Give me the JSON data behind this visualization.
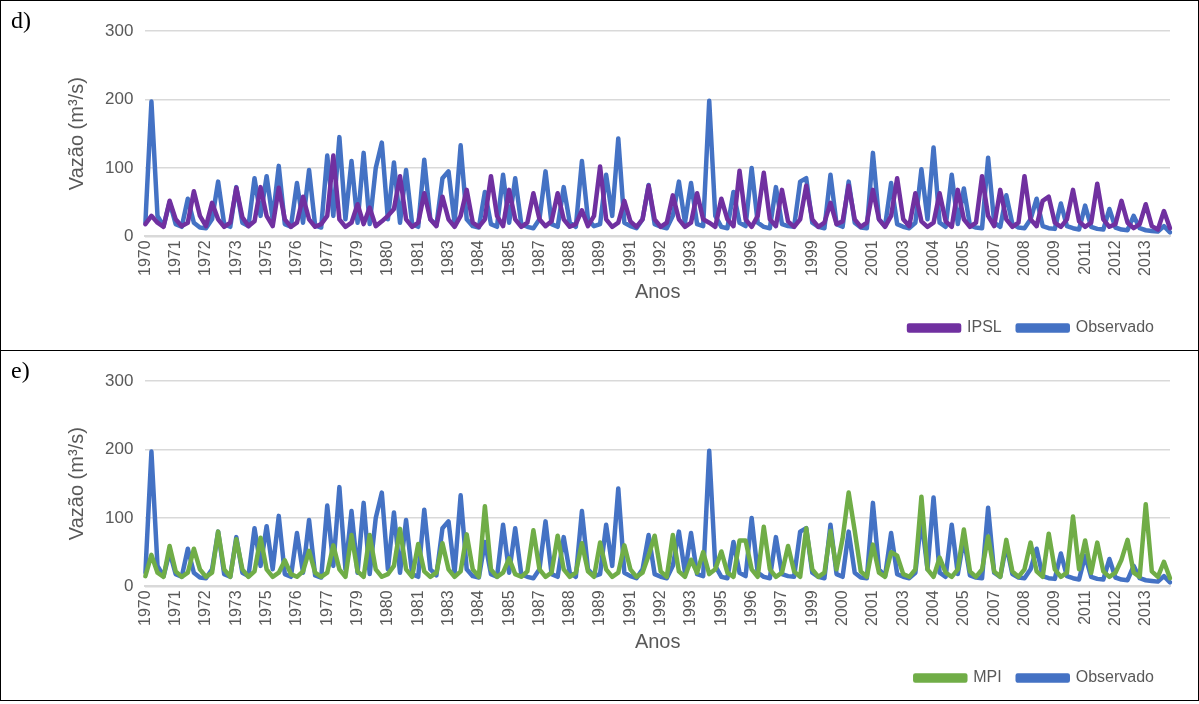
{
  "chart_data": [
    {
      "type": "line",
      "annotations": [
        "d)"
      ],
      "xlabel": "Anos",
      "ylabel": "Vazão (m³/s)",
      "ylim": [
        0,
        300
      ],
      "yticks": [
        0,
        100,
        200,
        300
      ],
      "grid": "y",
      "legend": "bottom right",
      "categories": [
        "1970",
        null,
        null,
        null,
        null,
        "1971",
        null,
        null,
        null,
        null,
        "1972",
        null,
        null,
        null,
        null,
        "1973",
        null,
        null,
        null,
        null,
        "1975",
        null,
        null,
        null,
        null,
        "1976",
        null,
        null,
        null,
        null,
        "1977",
        null,
        null,
        null,
        null,
        "1979",
        null,
        null,
        null,
        null,
        "1980",
        null,
        null,
        null,
        null,
        "1981",
        null,
        null,
        null,
        null,
        "1983",
        null,
        null,
        null,
        null,
        "1984",
        null,
        null,
        null,
        null,
        "1985",
        null,
        null,
        null,
        null,
        "1987",
        null,
        null,
        null,
        null,
        "1988",
        null,
        null,
        null,
        null,
        "1989",
        null,
        null,
        null,
        null,
        "1991",
        null,
        null,
        null,
        null,
        "1992",
        null,
        null,
        null,
        null,
        "1993",
        null,
        null,
        null,
        null,
        "1995",
        null,
        null,
        null,
        null,
        "1996",
        null,
        null,
        null,
        null,
        "1997",
        null,
        null,
        null,
        null,
        "1999",
        null,
        null,
        null,
        null,
        "2000",
        null,
        null,
        null,
        null,
        "2001",
        null,
        null,
        null,
        null,
        "2003",
        null,
        null,
        null,
        null,
        "2004",
        null,
        null,
        null,
        null,
        "2005",
        null,
        null,
        null,
        null,
        "2007",
        null,
        null,
        null,
        null,
        "2008",
        null,
        null,
        null,
        null,
        "2009",
        null,
        null,
        null,
        null,
        "2011",
        null,
        null,
        null,
        null,
        "2012",
        null,
        null,
        null,
        null,
        "2013",
        null,
        null,
        null,
        null
      ],
      "series": [
        {
          "name": "Observado",
          "color": "#4472c4",
          "values": [
            20,
            197,
            30,
            15,
            50,
            18,
            14,
            55,
            20,
            13,
            12,
            25,
            80,
            18,
            14,
            72,
            20,
            15,
            85,
            30,
            88,
            25,
            103,
            18,
            14,
            78,
            20,
            97,
            16,
            13,
            118,
            30,
            145,
            25,
            110,
            20,
            122,
            18,
            100,
            137,
            25,
            108,
            20,
            97,
            18,
            14,
            112,
            25,
            16,
            85,
            95,
            20,
            133,
            25,
            15,
            13,
            65,
            18,
            14,
            90,
            20,
            85,
            18,
            14,
            12,
            25,
            95,
            18,
            14,
            72,
            20,
            14,
            110,
            25,
            15,
            18,
            90,
            30,
            143,
            20,
            15,
            12,
            25,
            75,
            18,
            14,
            12,
            30,
            80,
            20,
            78,
            18,
            15,
            198,
            30,
            14,
            12,
            65,
            20,
            15,
            100,
            20,
            14,
            12,
            72,
            18,
            15,
            14,
            80,
            85,
            20,
            14,
            12,
            90,
            18,
            14,
            80,
            20,
            13,
            12,
            122,
            25,
            15,
            78,
            18,
            14,
            12,
            20,
            98,
            25,
            130,
            20,
            14,
            90,
            18,
            70,
            16,
            13,
            12,
            115,
            20,
            14,
            60,
            18,
            13,
            12,
            25,
            55,
            15,
            12,
            11,
            48,
            15,
            12,
            10,
            45,
            14,
            11,
            10,
            40,
            13,
            10,
            9,
            30,
            12,
            9,
            8,
            7,
            15,
            6
          ]
        },
        {
          "name": "IPSL",
          "color": "#7030a0",
          "values": [
            18,
            30,
            20,
            14,
            52,
            25,
            15,
            20,
            66,
            30,
            15,
            49,
            25,
            14,
            20,
            71,
            28,
            15,
            22,
            72,
            30,
            15,
            71,
            25,
            14,
            20,
            58,
            25,
            14,
            18,
            30,
            118,
            25,
            14,
            20,
            47,
            18,
            42,
            15,
            22,
            30,
            40,
            88,
            25,
            14,
            20,
            63,
            25,
            15,
            58,
            25,
            14,
            30,
            68,
            20,
            14,
            25,
            88,
            30,
            15,
            68,
            25,
            14,
            20,
            63,
            25,
            15,
            22,
            63,
            25,
            14,
            18,
            38,
            15,
            30,
            102,
            25,
            14,
            20,
            52,
            22,
            14,
            25,
            74,
            25,
            14,
            20,
            60,
            25,
            14,
            20,
            63,
            25,
            20,
            14,
            55,
            25,
            15,
            96,
            25,
            14,
            30,
            93,
            25,
            15,
            68,
            22,
            14,
            25,
            74,
            25,
            14,
            20,
            49,
            18,
            22,
            74,
            25,
            14,
            20,
            68,
            25,
            14,
            30,
            85,
            25,
            15,
            63,
            22,
            14,
            20,
            63,
            22,
            14,
            68,
            25,
            14,
            20,
            88,
            30,
            15,
            68,
            25,
            14,
            20,
            88,
            25,
            15,
            52,
            58,
            20,
            14,
            25,
            68,
            22,
            14,
            20,
            77,
            25,
            14,
            18,
            52,
            20,
            12,
            18,
            47,
            15,
            10,
            37,
            12
          ]
        }
      ]
    },
    {
      "type": "line",
      "annotations": [
        "e)"
      ],
      "xlabel": "Anos",
      "ylabel": "Vazão (m³/s)",
      "ylim": [
        0,
        300
      ],
      "yticks": [
        0,
        100,
        200,
        300
      ],
      "grid": "y",
      "legend": "bottom right",
      "categories": [
        "1970",
        null,
        null,
        null,
        null,
        "1971",
        null,
        null,
        null,
        null,
        "1972",
        null,
        null,
        null,
        null,
        "1973",
        null,
        null,
        null,
        null,
        "1975",
        null,
        null,
        null,
        null,
        "1976",
        null,
        null,
        null,
        null,
        "1977",
        null,
        null,
        null,
        null,
        "1979",
        null,
        null,
        null,
        null,
        "1980",
        null,
        null,
        null,
        null,
        "1981",
        null,
        null,
        null,
        null,
        "1983",
        null,
        null,
        null,
        null,
        "1984",
        null,
        null,
        null,
        null,
        "1985",
        null,
        null,
        null,
        null,
        "1987",
        null,
        null,
        null,
        null,
        "1988",
        null,
        null,
        null,
        null,
        "1989",
        null,
        null,
        null,
        null,
        "1991",
        null,
        null,
        null,
        null,
        "1992",
        null,
        null,
        null,
        null,
        "1993",
        null,
        null,
        null,
        null,
        "1995",
        null,
        null,
        null,
        null,
        "1996",
        null,
        null,
        null,
        null,
        "1997",
        null,
        null,
        null,
        null,
        "1999",
        null,
        null,
        null,
        null,
        "2000",
        null,
        null,
        null,
        null,
        "2001",
        null,
        null,
        null,
        null,
        "2003",
        null,
        null,
        null,
        null,
        "2004",
        null,
        null,
        null,
        null,
        "2005",
        null,
        null,
        null,
        null,
        "2007",
        null,
        null,
        null,
        null,
        "2008",
        null,
        null,
        null,
        null,
        "2009",
        null,
        null,
        null,
        null,
        "2011",
        null,
        null,
        null,
        null,
        "2012",
        null,
        null,
        null,
        null,
        "2013",
        null,
        null,
        null,
        null
      ],
      "series": [
        {
          "name": "Observado",
          "color": "#4472c4",
          "values": [
            20,
            197,
            30,
            15,
            50,
            18,
            14,
            55,
            20,
            13,
            12,
            25,
            80,
            18,
            14,
            72,
            20,
            15,
            85,
            30,
            88,
            25,
            103,
            18,
            14,
            78,
            20,
            97,
            16,
            13,
            118,
            30,
            145,
            25,
            110,
            20,
            122,
            18,
            100,
            137,
            25,
            108,
            20,
            97,
            18,
            14,
            112,
            25,
            16,
            85,
            95,
            20,
            133,
            25,
            15,
            13,
            65,
            18,
            14,
            90,
            20,
            85,
            18,
            14,
            12,
            25,
            95,
            18,
            14,
            72,
            20,
            14,
            110,
            25,
            15,
            18,
            90,
            30,
            143,
            20,
            15,
            12,
            25,
            75,
            18,
            14,
            12,
            30,
            80,
            20,
            78,
            18,
            15,
            198,
            30,
            14,
            12,
            65,
            20,
            15,
            100,
            20,
            14,
            12,
            72,
            18,
            15,
            14,
            80,
            85,
            20,
            14,
            12,
            90,
            18,
            14,
            80,
            20,
            13,
            12,
            122,
            25,
            15,
            78,
            18,
            14,
            12,
            20,
            98,
            25,
            130,
            20,
            14,
            90,
            18,
            70,
            16,
            13,
            12,
            115,
            20,
            14,
            60,
            18,
            13,
            12,
            25,
            55,
            15,
            12,
            11,
            48,
            15,
            12,
            10,
            45,
            14,
            11,
            10,
            40,
            13,
            10,
            9,
            30,
            12,
            9,
            8,
            7,
            15,
            6
          ]
        },
        {
          "name": "MPI",
          "color": "#70ad47",
          "values": [
            15,
            46,
            20,
            14,
            59,
            22,
            14,
            20,
            55,
            25,
            14,
            20,
            80,
            25,
            14,
            69,
            25,
            14,
            22,
            71,
            25,
            14,
            20,
            38,
            18,
            14,
            22,
            52,
            20,
            14,
            20,
            60,
            25,
            14,
            75,
            22,
            14,
            75,
            25,
            14,
            18,
            30,
            84,
            25,
            14,
            62,
            22,
            14,
            20,
            63,
            25,
            14,
            22,
            76,
            25,
            14,
            117,
            25,
            14,
            20,
            41,
            18,
            14,
            22,
            82,
            25,
            14,
            20,
            74,
            25,
            14,
            20,
            63,
            22,
            14,
            64,
            25,
            14,
            20,
            60,
            25,
            14,
            20,
            45,
            74,
            22,
            14,
            75,
            22,
            14,
            39,
            20,
            50,
            18,
            25,
            51,
            20,
            14,
            67,
            67,
            25,
            14,
            87,
            25,
            14,
            20,
            59,
            22,
            14,
            85,
            25,
            14,
            20,
            81,
            25,
            70,
            137,
            81,
            22,
            14,
            61,
            20,
            14,
            50,
            45,
            18,
            14,
            25,
            131,
            25,
            14,
            42,
            20,
            14,
            25,
            83,
            22,
            14,
            25,
            73,
            22,
            14,
            68,
            22,
            14,
            25,
            64,
            22,
            14,
            77,
            25,
            14,
            20,
            102,
            25,
            67,
            20,
            64,
            22,
            14,
            20,
            39,
            68,
            20,
            14,
            120,
            22,
            14,
            36,
            12
          ]
        }
      ]
    }
  ]
}
